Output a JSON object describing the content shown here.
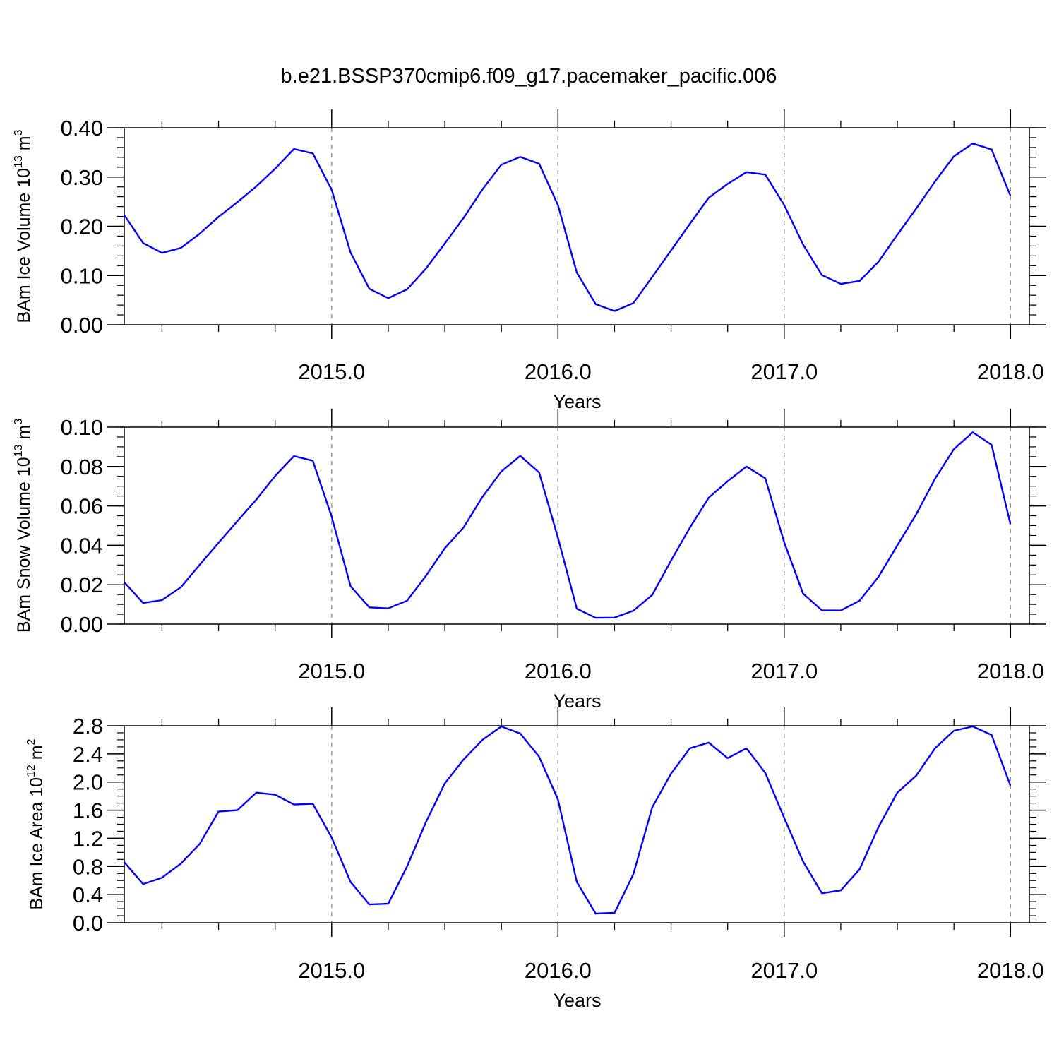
{
  "figure": {
    "title": "b.e21.BSSP370cmip6.f09_g17.pacemaker_pacific.006"
  },
  "chart_data": [
    {
      "type": "line",
      "ylabel": {
        "base": "BAm Ice Volume 10",
        "exp": "13",
        "unit": " m",
        "unit_exp": "3"
      },
      "xlabel": "Years",
      "xlim": [
        2014.0833,
        2018.0833
      ],
      "ylim": [
        0,
        0.4
      ],
      "x_ticks": [
        2015,
        2016,
        2017,
        2018
      ],
      "x_tick_labels": [
        "2015.0",
        "2016.0",
        "2017.0",
        "2018.0"
      ],
      "y_ticks": [
        0,
        0.1,
        0.2,
        0.3,
        0.4
      ],
      "y_tick_labels": [
        "0.00",
        "0.10",
        "0.20",
        "0.30",
        "0.40"
      ],
      "y_minor_step": 0.02,
      "grid": "vertical dashed at year ticks",
      "line_color": "#0000ff",
      "x_start": 2014.0833,
      "x_step": 0.08333,
      "values": [
        0.223,
        0.166,
        0.146,
        0.156,
        0.185,
        0.219,
        0.249,
        0.281,
        0.317,
        0.357,
        0.348,
        0.274,
        0.147,
        0.073,
        0.054,
        0.072,
        0.114,
        0.165,
        0.217,
        0.275,
        0.325,
        0.341,
        0.327,
        0.243,
        0.106,
        0.042,
        0.028,
        0.044,
        0.097,
        0.151,
        0.205,
        0.258,
        0.286,
        0.31,
        0.305,
        0.243,
        0.163,
        0.101,
        0.083,
        0.089,
        0.128,
        0.183,
        0.236,
        0.291,
        0.342,
        0.368,
        0.356,
        0.262
      ]
    },
    {
      "type": "line",
      "ylabel": {
        "base": "BAm Snow Volume 10",
        "exp": "13",
        "unit": " m",
        "unit_exp": "3"
      },
      "xlabel": "Years",
      "xlim": [
        2014.0833,
        2018.0833
      ],
      "ylim": [
        0,
        0.1
      ],
      "x_ticks": [
        2015,
        2016,
        2017,
        2018
      ],
      "x_tick_labels": [
        "2015.0",
        "2016.0",
        "2017.0",
        "2018.0"
      ],
      "y_ticks": [
        0,
        0.02,
        0.04,
        0.06,
        0.08,
        0.1
      ],
      "y_tick_labels": [
        "0.00",
        "0.02",
        "0.04",
        "0.06",
        "0.08",
        "0.10"
      ],
      "y_minor_step": 0.005,
      "grid": "vertical dashed at year ticks",
      "line_color": "#0000ff",
      "x_start": 2014.0833,
      "x_step": 0.08333,
      "values": [
        0.0213,
        0.0107,
        0.0122,
        0.0187,
        0.0301,
        0.0413,
        0.0523,
        0.0632,
        0.0752,
        0.0853,
        0.0829,
        0.0545,
        0.0193,
        0.0085,
        0.008,
        0.0119,
        0.0245,
        0.0385,
        0.0491,
        0.0646,
        0.0775,
        0.0854,
        0.077,
        0.0438,
        0.0078,
        0.0032,
        0.0033,
        0.0068,
        0.0148,
        0.0323,
        0.049,
        0.0642,
        0.0725,
        0.08,
        0.074,
        0.0415,
        0.0155,
        0.007,
        0.0069,
        0.0119,
        0.024,
        0.04,
        0.0557,
        0.0738,
        0.0888,
        0.0974,
        0.091,
        0.0508
      ]
    },
    {
      "type": "line",
      "ylabel": {
        "base": "BAm Ice Area 10",
        "exp": "12",
        "unit": " m",
        "unit_exp": "2"
      },
      "xlabel": "Years",
      "xlim": [
        2014.0833,
        2018.0833
      ],
      "ylim": [
        0,
        2.8
      ],
      "x_ticks": [
        2015,
        2016,
        2017,
        2018
      ],
      "x_tick_labels": [
        "2015.0",
        "2016.0",
        "2017.0",
        "2018.0"
      ],
      "y_ticks": [
        0,
        0.4,
        0.8,
        1.2,
        1.6,
        2.0,
        2.4,
        2.8
      ],
      "y_tick_labels": [
        "0.0",
        "0.4",
        "0.8",
        "1.2",
        "1.6",
        "2.0",
        "2.4",
        "2.8"
      ],
      "y_minor_step": 0.1,
      "grid": "vertical dashed at year ticks",
      "line_color": "#0000ff",
      "x_start": 2014.0833,
      "x_step": 0.08333,
      "values": [
        0.86,
        0.55,
        0.64,
        0.84,
        1.12,
        1.58,
        1.6,
        1.85,
        1.82,
        1.68,
        1.69,
        1.21,
        0.58,
        0.26,
        0.27,
        0.8,
        1.43,
        1.98,
        2.32,
        2.6,
        2.79,
        2.69,
        2.36,
        1.75,
        0.58,
        0.13,
        0.14,
        0.69,
        1.64,
        2.12,
        2.48,
        2.56,
        2.34,
        2.48,
        2.13,
        1.49,
        0.87,
        0.42,
        0.46,
        0.76,
        1.36,
        1.85,
        2.09,
        2.48,
        2.73,
        2.79,
        2.67,
        1.95
      ]
    }
  ]
}
